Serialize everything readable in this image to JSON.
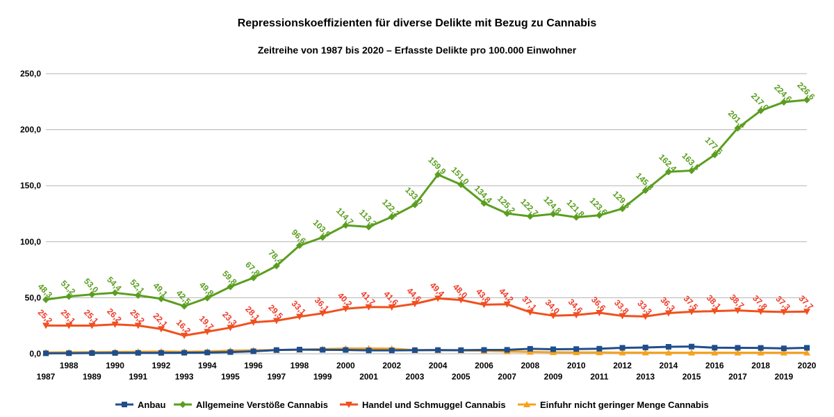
{
  "chart_data": {
    "type": "line",
    "title": "Repressionskoeffizienten für diverse Delikte mit Bezug zu Cannabis",
    "subtitle": "Zeitreihe von 1987 bis 2020 – Erfasste Delikte pro 100.000 Einwohner",
    "xlabel": "",
    "ylabel": "",
    "ylim": [
      0,
      250
    ],
    "yticks": [
      "0,0",
      "50,0",
      "100,0",
      "150,0",
      "200,0",
      "250,0"
    ],
    "grid": true,
    "legend_position": "bottom",
    "x": [
      "1987",
      "1988",
      "1989",
      "1990",
      "1991",
      "1992",
      "1993",
      "1994",
      "1995",
      "1996",
      "1997",
      "1998",
      "1999",
      "2000",
      "2001",
      "2002",
      "2003",
      "2004",
      "2005",
      "2006",
      "2007",
      "2008",
      "2009",
      "2010",
      "2011",
      "2012",
      "2013",
      "2014",
      "2015",
      "2016",
      "2017",
      "2018",
      "2019",
      "2020"
    ],
    "series": [
      {
        "name": "Anbau",
        "color": "#1f4e8c",
        "marker": "square",
        "values": [
          0.4,
          0.5,
          0.6,
          0.7,
          0.8,
          0.8,
          0.9,
          1.1,
          1.5,
          2.2,
          3.3,
          3.7,
          3.5,
          3.4,
          3.0,
          3.0,
          3.2,
          3.3,
          3.2,
          3.4,
          3.5,
          4.4,
          4.0,
          4.2,
          4.5,
          5.3,
          5.6,
          6.2,
          6.4,
          5.4,
          5.3,
          5.2,
          4.8,
          5.3
        ]
      },
      {
        "name": "Allgemeine Verstöße Cannabis",
        "color": "#5a9e1f",
        "marker": "diamond",
        "values": [
          48.3,
          51.2,
          53.0,
          54.4,
          52.1,
          49.1,
          42.5,
          49.8,
          59.8,
          67.8,
          78.4,
          96.6,
          103.9,
          114.7,
          113.2,
          122.2,
          133.0,
          159.9,
          151.0,
          134.4,
          125.2,
          122.7,
          124.8,
          121.8,
          123.6,
          129.5,
          145.8,
          162.4,
          163.5,
          177.6,
          201.4,
          217.0,
          224.6,
          226.6
        ],
        "labels": [
          "48,3",
          "51,2",
          "53,0",
          "54,4",
          "52,1",
          "49,1",
          "42,5",
          "49,8",
          "59,8",
          "67,8",
          "78,4",
          "96,6",
          "103,9",
          "114,7",
          "113,2",
          "122,2",
          "133,0",
          "159,9",
          "151,0",
          "134,4",
          "125,2",
          "122,7",
          "124,8",
          "121,8",
          "123,6",
          "129,5",
          "145,8",
          "162,4",
          "163,5",
          "177,6",
          "201,4",
          "217,0",
          "224,6",
          "226,6"
        ]
      },
      {
        "name": "Handel und Schmuggel Cannabis",
        "color": "#f0501e",
        "marker": "triangle-down",
        "values": [
          25.2,
          25.1,
          25.1,
          26.2,
          25.2,
          22.1,
          16.2,
          19.7,
          23.3,
          28.1,
          29.5,
          33.1,
          36.1,
          40.2,
          41.7,
          41.6,
          44.6,
          49.4,
          48.0,
          43.8,
          44.2,
          37.1,
          34.0,
          34.6,
          36.6,
          33.8,
          33.3,
          36.3,
          37.5,
          38.1,
          38.7,
          37.8,
          37.3,
          37.7
        ],
        "labels": [
          "25,2",
          "25,1",
          "25,1",
          "26,2",
          "25,2",
          "22,1",
          "16,2",
          "19,7",
          "23,3",
          "28,1",
          "29,5",
          "33,1",
          "36,1",
          "40,2",
          "41,7",
          "41,6",
          "44,6",
          "49,4",
          "48,0",
          "43,8",
          "44,2",
          "37,1",
          "34,0",
          "34,6",
          "36,6",
          "33,8",
          "33,3",
          "36,3",
          "37,5",
          "38,1",
          "38,7",
          "37,8",
          "37,3",
          "37,7"
        ],
        "label_color": "#f03a28"
      },
      {
        "name": "Einfuhr nicht geringer Menge Cannabis",
        "color": "#f7a21b",
        "marker": "triangle-up",
        "values": [
          1.2,
          1.3,
          1.4,
          1.6,
          1.8,
          2.0,
          1.8,
          2.0,
          2.8,
          3.1,
          3.3,
          3.6,
          4.2,
          4.6,
          4.7,
          4.6,
          3.2,
          3.2,
          3.0,
          2.6,
          2.0,
          1.6,
          1.3,
          1.2,
          1.2,
          1.0,
          1.0,
          0.9,
          0.9,
          0.9,
          0.9,
          0.9,
          0.9,
          0.9
        ]
      }
    ]
  }
}
